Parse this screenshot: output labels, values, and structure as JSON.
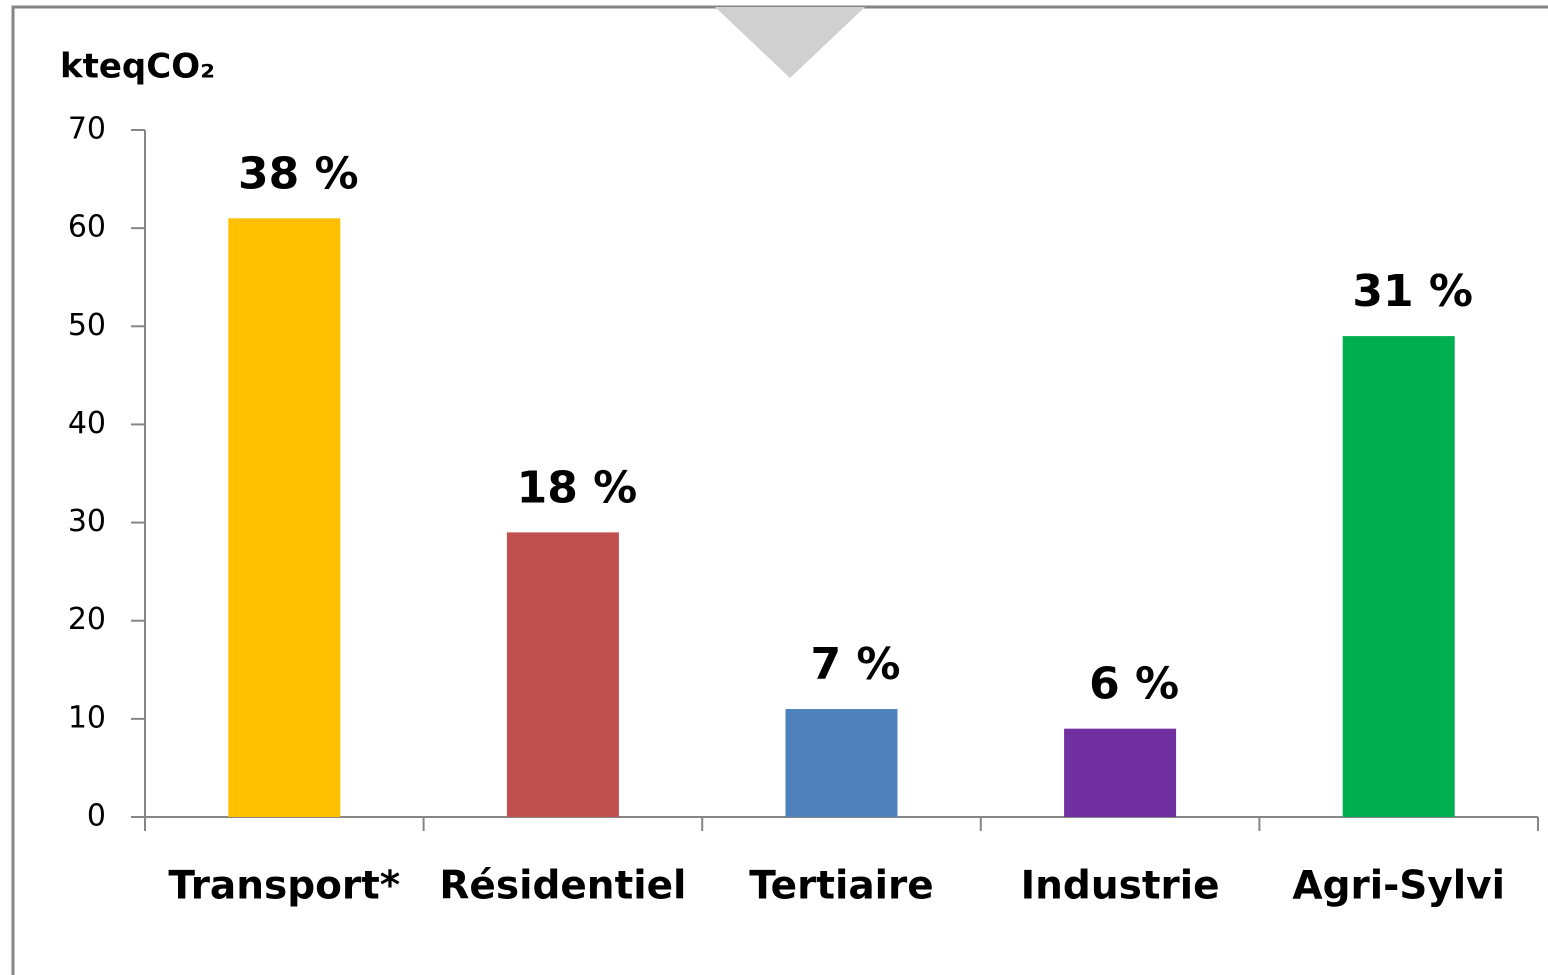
{
  "chart_data": {
    "type": "bar",
    "y_label": "kteqCO₂",
    "categories": [
      "Transport*",
      "Résidentiel",
      "Tertiaire",
      "Industrie",
      "Agri-Sylvi"
    ],
    "values": [
      61,
      29,
      11,
      9,
      49
    ],
    "annotations": [
      "38 %",
      "18 %",
      "7 %",
      "6 %",
      "31 %"
    ],
    "colors": [
      "#ffc000",
      "#c0504d",
      "#4f81bd",
      "#7030a0",
      "#00b050"
    ],
    "ylim": [
      0,
      70
    ],
    "yticks": [
      0,
      10,
      20,
      30,
      40,
      50,
      60,
      70
    ],
    "grid": false
  }
}
